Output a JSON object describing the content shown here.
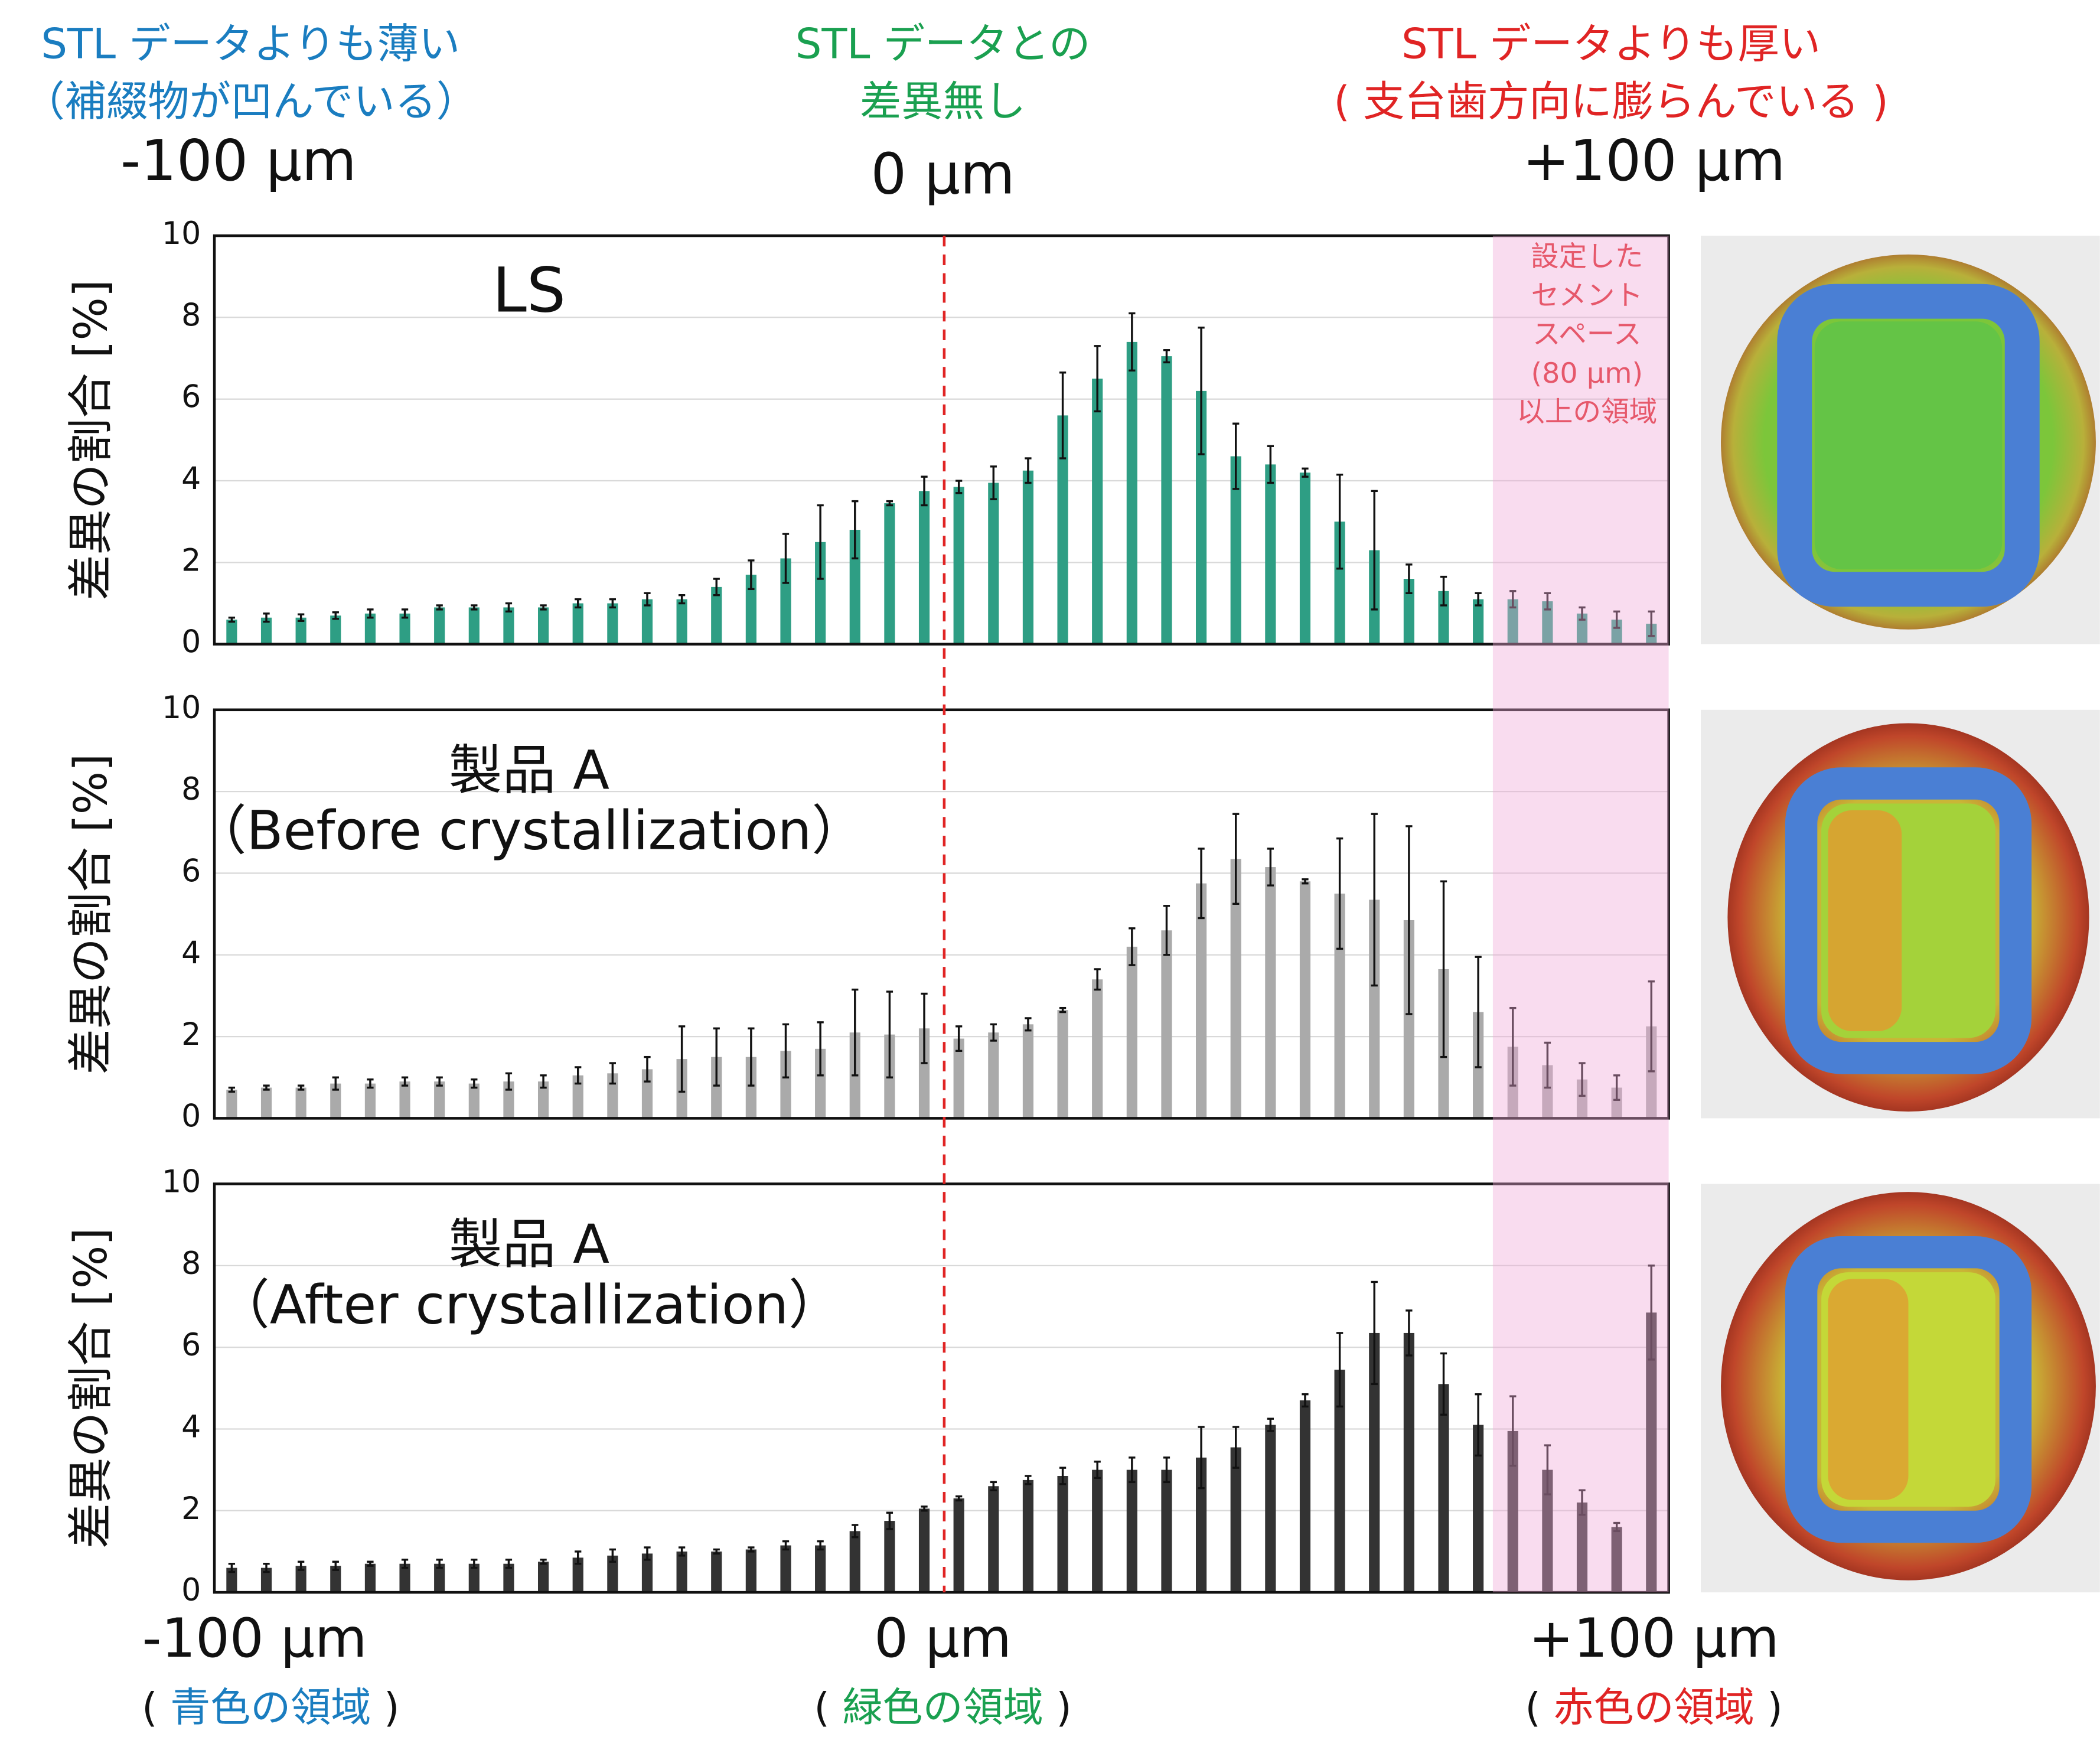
{
  "header": {
    "left": {
      "lines": [
        "STL データよりも薄い",
        "（補綴物が凹んでいる）"
      ],
      "value": "-100 µm"
    },
    "center": {
      "lines": [
        "STL データとの",
        "差異無し"
      ],
      "value": "0 µm"
    },
    "right": {
      "lines": [
        "STL データよりも厚い",
        "( 支台歯方向に膨らんでいる )"
      ],
      "value": "+100 µm"
    }
  },
  "footer": {
    "left": {
      "value": "-100 µm",
      "open": "(",
      "text": "青色の領域",
      "close": ")"
    },
    "center": {
      "value": "0 µm",
      "open": "(",
      "text": "緑色の領域",
      "close": ")"
    },
    "right": {
      "value": "+100 µm",
      "open": "(",
      "text": "赤色の領域",
      "close": ")"
    }
  },
  "chart_data": [
    {
      "type": "bar",
      "title": [
        "LS"
      ],
      "y_label": "差異の割合 [%]",
      "color": "#2e9e84",
      "annotation": [
        "設定した",
        "セメント",
        "スペース",
        "(80 µm)",
        "以上の領域"
      ],
      "categories": [
        null,
        null,
        null,
        null,
        null,
        null,
        null,
        null,
        null,
        null,
        null,
        null,
        null,
        null,
        null,
        null,
        null,
        null,
        null,
        null,
        null,
        null,
        null,
        null,
        null,
        null,
        null,
        null,
        null,
        null,
        null,
        null,
        null,
        null,
        null,
        null,
        null,
        null,
        null,
        null,
        null,
        null
      ],
      "values": [
        0.6,
        0.65,
        0.65,
        0.7,
        0.75,
        0.75,
        0.9,
        0.9,
        0.9,
        0.9,
        1.0,
        1.0,
        1.1,
        1.1,
        1.4,
        1.7,
        2.1,
        2.5,
        2.8,
        3.45,
        3.75,
        3.85,
        3.95,
        4.25,
        5.6,
        6.5,
        7.4,
        7.05,
        6.2,
        4.6,
        4.4,
        4.2,
        3.0,
        2.3,
        1.6,
        1.3,
        1.1,
        1.1,
        1.05,
        0.75,
        0.6,
        0.5
      ],
      "errors": [
        0.05,
        0.1,
        0.08,
        0.08,
        0.1,
        0.1,
        0.05,
        0.05,
        0.1,
        0.05,
        0.1,
        0.1,
        0.15,
        0.1,
        0.2,
        0.35,
        0.6,
        0.9,
        0.7,
        0.05,
        0.35,
        0.15,
        0.4,
        0.3,
        1.05,
        0.8,
        0.7,
        0.15,
        1.55,
        0.8,
        0.45,
        0.1,
        1.15,
        1.45,
        0.35,
        0.35,
        0.15,
        0.2,
        0.2,
        0.15,
        0.2,
        0.3
      ],
      "ylim": [
        0,
        10
      ],
      "yticks": [
        0,
        2,
        4,
        6,
        8,
        10
      ],
      "grid": true
    },
    {
      "type": "bar",
      "title": [
        "製品 A",
        "（Before crystallization）"
      ],
      "y_label": "差異の割合 [%]",
      "color": "#aaaaaa",
      "categories": [
        null,
        null,
        null,
        null,
        null,
        null,
        null,
        null,
        null,
        null,
        null,
        null,
        null,
        null,
        null,
        null,
        null,
        null,
        null,
        null,
        null,
        null,
        null,
        null,
        null,
        null,
        null,
        null,
        null,
        null,
        null,
        null,
        null,
        null,
        null,
        null,
        null,
        null,
        null,
        null,
        null,
        null
      ],
      "values": [
        0.7,
        0.75,
        0.75,
        0.85,
        0.85,
        0.9,
        0.9,
        0.85,
        0.9,
        0.9,
        1.05,
        1.1,
        1.2,
        1.45,
        1.5,
        1.5,
        1.65,
        1.7,
        2.1,
        2.05,
        2.2,
        1.95,
        2.1,
        2.3,
        2.65,
        3.4,
        4.2,
        4.6,
        5.75,
        6.35,
        6.15,
        5.8,
        5.5,
        5.35,
        4.85,
        3.65,
        2.6,
        1.75,
        1.3,
        0.95,
        0.75,
        2.25
      ],
      "errors": [
        0.05,
        0.05,
        0.05,
        0.15,
        0.1,
        0.1,
        0.1,
        0.1,
        0.2,
        0.15,
        0.2,
        0.25,
        0.3,
        0.8,
        0.7,
        0.7,
        0.65,
        0.65,
        1.05,
        1.05,
        0.85,
        0.3,
        0.2,
        0.15,
        0.05,
        0.25,
        0.45,
        0.6,
        0.85,
        1.1,
        0.45,
        0.05,
        1.35,
        2.1,
        2.3,
        2.15,
        1.35,
        0.95,
        0.55,
        0.4,
        0.3,
        1.1
      ],
      "ylim": [
        0,
        10
      ],
      "yticks": [
        0,
        2,
        4,
        6,
        8,
        10
      ],
      "grid": true
    },
    {
      "type": "bar",
      "title": [
        "製品 A",
        "（After crystallization）"
      ],
      "y_label": "差異の割合 [%]",
      "color": "#333333",
      "categories": [
        null,
        null,
        null,
        null,
        null,
        null,
        null,
        null,
        null,
        null,
        null,
        null,
        null,
        null,
        null,
        null,
        null,
        null,
        null,
        null,
        null,
        null,
        null,
        null,
        null,
        null,
        null,
        null,
        null,
        null,
        null,
        null,
        null,
        null,
        null,
        null,
        null,
        null,
        null,
        null,
        null,
        null
      ],
      "values": [
        0.6,
        0.6,
        0.65,
        0.65,
        0.7,
        0.7,
        0.7,
        0.7,
        0.7,
        0.75,
        0.85,
        0.9,
        0.95,
        1.0,
        1.0,
        1.05,
        1.15,
        1.15,
        1.5,
        1.75,
        2.05,
        2.3,
        2.6,
        2.75,
        2.85,
        3.0,
        3.0,
        3.0,
        3.3,
        3.55,
        4.1,
        4.7,
        5.45,
        6.35,
        6.35,
        5.1,
        4.1,
        3.95,
        3.0,
        2.2,
        1.6,
        6.85
      ],
      "errors": [
        0.1,
        0.1,
        0.1,
        0.1,
        0.05,
        0.1,
        0.1,
        0.1,
        0.1,
        0.05,
        0.15,
        0.15,
        0.15,
        0.1,
        0.05,
        0.05,
        0.1,
        0.1,
        0.15,
        0.2,
        0.05,
        0.05,
        0.1,
        0.1,
        0.2,
        0.2,
        0.3,
        0.3,
        0.75,
        0.5,
        0.15,
        0.15,
        0.9,
        1.25,
        0.55,
        0.75,
        0.75,
        0.85,
        0.6,
        0.3,
        0.1,
        1.15
      ],
      "ylim": [
        0,
        10
      ],
      "yticks": [
        0,
        2,
        4,
        6,
        8,
        10
      ],
      "grid": true
    }
  ]
}
